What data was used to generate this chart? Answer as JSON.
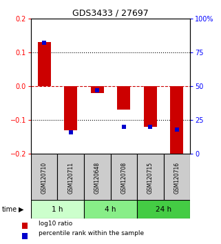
{
  "title": "GDS3433 / 27697",
  "samples": [
    "GSM120710",
    "GSM120711",
    "GSM120648",
    "GSM120708",
    "GSM120715",
    "GSM120716"
  ],
  "log10_ratio": [
    0.13,
    -0.13,
    -0.02,
    -0.07,
    -0.12,
    -0.22
  ],
  "percentile_rank": [
    82,
    16,
    47,
    20,
    20,
    18
  ],
  "left_ylim": [
    -0.2,
    0.2
  ],
  "right_ylim": [
    0,
    100
  ],
  "left_yticks": [
    -0.2,
    -0.1,
    0,
    0.1,
    0.2
  ],
  "right_yticks": [
    0,
    25,
    50,
    75,
    100
  ],
  "right_yticklabels": [
    "0",
    "25",
    "50",
    "75",
    "100%"
  ],
  "hlines_dotted": [
    0.1,
    -0.1
  ],
  "hline_zero_color": "#cc0000",
  "bar_color": "#cc0000",
  "dot_color": "#0000cc",
  "time_groups": [
    {
      "label": "1 h",
      "start": 0,
      "end": 2,
      "color": "#ccffcc"
    },
    {
      "label": "4 h",
      "start": 2,
      "end": 4,
      "color": "#88ee88"
    },
    {
      "label": "24 h",
      "start": 4,
      "end": 6,
      "color": "#44cc44"
    }
  ],
  "legend_items": [
    {
      "label": "log10 ratio",
      "color": "#cc0000"
    },
    {
      "label": "percentile rank within the sample",
      "color": "#0000cc"
    }
  ],
  "sample_box_color": "#cccccc",
  "bar_width": 0.5,
  "dot_size": 4
}
